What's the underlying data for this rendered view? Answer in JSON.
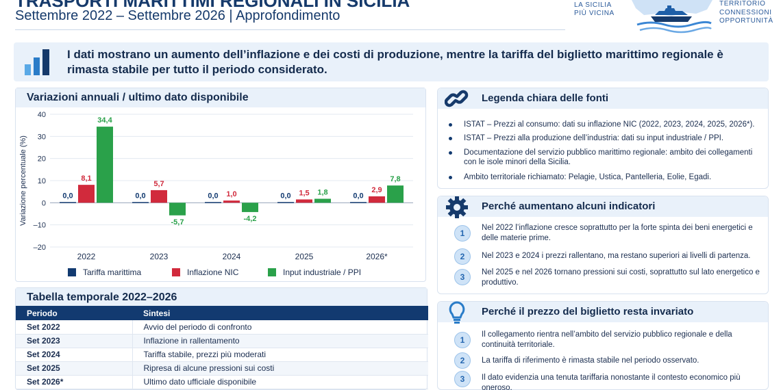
{
  "header": {
    "title": "TRASPORTI MARITTIMI REGIONALI IN SICILIA",
    "subtitle": "Settembre 2022 – Settembre 2026 | Approfondimento",
    "logo_left_lines": [
      "LA SICILIA",
      "PIÙ VICINA"
    ],
    "logo_right_lines": [
      "TERRITORIO",
      "CONNESSIONI",
      "OPPORTUNITÀ"
    ]
  },
  "banner": {
    "icon": "bar-chart-icon",
    "text": "I dati mostrano un aumento dell’inflazione e dei costi di produzione, mentre la tariffa del biglietto marittimo regionale è rimasta stabile per tutto il periodo considerato."
  },
  "chart_panel": {
    "title": "Variazioni annuali / ultimo dato disponibile"
  },
  "chart_data": {
    "type": "bar",
    "categories": [
      "2022",
      "2023",
      "2024",
      "2025",
      "2026*"
    ],
    "series": [
      {
        "name": "Tariffa marittima",
        "color": "#123a70",
        "values": [
          0.0,
          0.0,
          0.0,
          0.0,
          0.0
        ],
        "labels": [
          "0,0",
          "0,0",
          "0,0",
          "0,0",
          "0,0"
        ]
      },
      {
        "name": "Inflazione NIC",
        "color": "#d12a3c",
        "values": [
          8.1,
          5.7,
          1.0,
          1.5,
          2.9
        ],
        "labels": [
          "8,1",
          "5,7",
          "1,0",
          "1,5",
          "2,9"
        ]
      },
      {
        "name": "Input industriale / PPI",
        "color": "#2aa14a",
        "values": [
          34.4,
          -5.7,
          -4.2,
          1.8,
          7.8
        ],
        "labels": [
          "34,4",
          "-5,7",
          "-4,2",
          "1,8",
          "7,8"
        ]
      }
    ],
    "ylabel": "Variazione percentuale (%)",
    "ylim": [
      -20,
      40
    ],
    "yticks": [
      -20,
      -10,
      0,
      10,
      20,
      30,
      40
    ],
    "ytick_labels": [
      "–20",
      "–10",
      "0",
      "10",
      "20",
      "30",
      "40"
    ],
    "grid": true,
    "legend": "bottom"
  },
  "table": {
    "title": "Tabella temporale 2022–2026",
    "headers": [
      "Periodo",
      "Sintesi"
    ],
    "rows": [
      [
        "Set 2022",
        "Avvio del periodo di confronto"
      ],
      [
        "Set 2023",
        "Inflazione in rallentamento"
      ],
      [
        "Set 2024",
        "Tariffa stabile, prezzi più moderati"
      ],
      [
        "Set 2025",
        "Ripresa di alcune pressioni sui costi"
      ],
      [
        "Set 2026*",
        "Ultimo dato ufficiale disponibile"
      ]
    ]
  },
  "sources": {
    "title": "Legenda chiara delle fonti",
    "icon": "link-icon",
    "items": [
      "ISTAT – Prezzi al consumo: dati su inflazione NIC (2022, 2023, 2024, 2025, 2026*).",
      "ISTAT – Prezzi alla produzione dell’industria: dati su input industriale / PPI.",
      "Documentazione del servizio pubblico marittimo regionale: ambito dei collegamenti con le isole minori della Sicilia.",
      "Ambito territoriale richiamato: Pelagie, Ustica, Pantelleria, Eolie, Egadi."
    ]
  },
  "why_up": {
    "title": "Perché aumentano alcuni indicatori",
    "icon": "gear-icon",
    "items": [
      {
        "n": "1",
        "text": "Nel 2022 l’inflazione cresce soprattutto per la forte spinta dei beni energetici e delle materie prime."
      },
      {
        "n": "2",
        "text": "Nel 2023 e 2024 i prezzi rallentano, ma restano superiori ai livelli di partenza."
      },
      {
        "n": "3",
        "text": "Nel 2025 e nel 2026 tornano pressioni sui costi, soprattutto sul lato energetico e produttivo."
      }
    ]
  },
  "why_flat": {
    "title": "Perché il prezzo del biglietto resta invariato",
    "icon": "lightbulb-icon",
    "items": [
      {
        "n": "1",
        "text": "Il collegamento rientra nell’ambito del servizio pubblico regionale e della continuità territoriale."
      },
      {
        "n": "2",
        "text": "La tariffa di riferimento è rimasta stabile nel periodo osservato."
      },
      {
        "n": "3",
        "text": "Il dato evidenzia una tenuta tariffaria nonostante il contesto economico più oneroso."
      }
    ]
  }
}
